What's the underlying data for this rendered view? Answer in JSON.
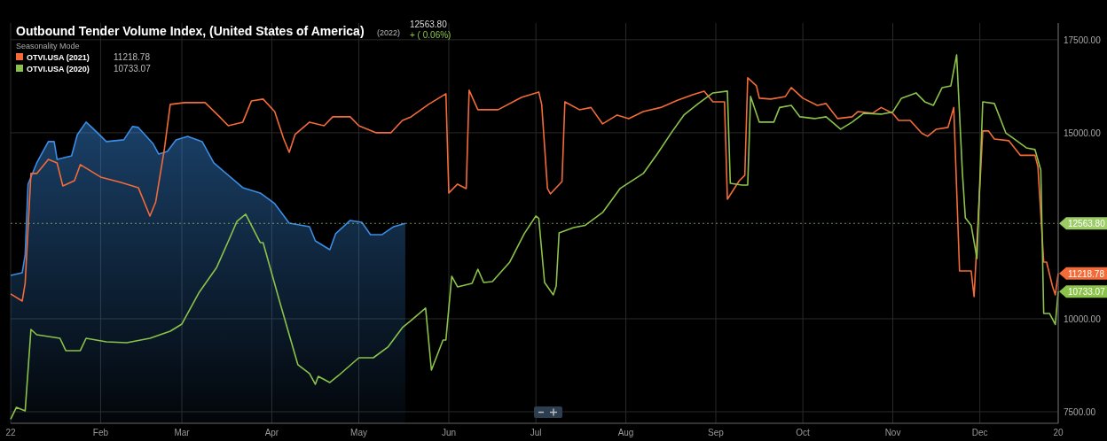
{
  "chart_data": {
    "type": "line",
    "title": "Outbound Tender Volume Index, (United States of America)",
    "legend_title": "Seasonality Mode",
    "legend": "top left",
    "grid": true,
    "xlim": [
      "--01-01",
      "--12-28"
    ],
    "xticks": [
      {
        "value": "--01-01",
        "label": "22"
      },
      {
        "value": "--02-01",
        "label": "Feb"
      },
      {
        "value": "--03-01",
        "label": "Mar"
      },
      {
        "value": "--04-01",
        "label": "Apr"
      },
      {
        "value": "--05-01",
        "label": "May"
      },
      {
        "value": "--06-01",
        "label": "Jun"
      },
      {
        "value": "--07-01",
        "label": "Jul"
      },
      {
        "value": "--08-01",
        "label": "Aug"
      },
      {
        "value": "--09-01",
        "label": "Sep"
      },
      {
        "value": "--10-01",
        "label": "Oct"
      },
      {
        "value": "--11-01",
        "label": "Nov"
      },
      {
        "value": "--12-01",
        "label": "Dec"
      },
      {
        "value": "--12-28",
        "label": "20"
      }
    ],
    "ylim": [
      7190,
      17950
    ],
    "yticks": [
      {
        "value": 7500,
        "label": "7500.00"
      },
      {
        "value": 10000,
        "label": "10000.00"
      },
      {
        "value": 15000,
        "label": "15000.00"
      },
      {
        "value": 17500,
        "label": "17500.00"
      }
    ],
    "ref_lines": [
      {
        "axis": "y",
        "value": 12563.8,
        "label": "12563.80",
        "color": "#9ccc65",
        "line_style": "dotted"
      }
    ],
    "annotations": [
      "(2022)",
      "12563.80",
      "+ ( 0.06%)",
      "11218.78",
      "10733.07",
      {
        "text": "11218.78",
        "x": "--12-28",
        "y": 11218.78
      },
      {
        "text": "10733.07",
        "x": "--12-28",
        "y": 10733.07
      }
    ],
    "series": [
      {
        "type": "area",
        "color": "#3a8ee6",
        "x": [
          "--01-01",
          "--01-05",
          "--01-06",
          "--01-07",
          "--01-10",
          "--01-14",
          "--01-16",
          "--01-17",
          "--01-22",
          "--01-24",
          "--01-27",
          "--01-29",
          "--02-03",
          "--02-09",
          "--02-12",
          "--02-14",
          "--02-19",
          "--02-21",
          "--02-24",
          "--02-27",
          "--03-03",
          "--03-08",
          "--03-12",
          "--03-22",
          "--03-28",
          "--04-02",
          "--04-07",
          "--04-14",
          "--04-16",
          "--04-21",
          "--04-23",
          "--04-28",
          "--05-02",
          "--05-05",
          "--05-09",
          "--05-13",
          "--05-17"
        ],
        "values": [
          11167,
          11238,
          11714,
          13619,
          14190,
          14762,
          14762,
          14286,
          14381,
          14952,
          15286,
          15143,
          14762,
          14810,
          15167,
          15143,
          14714,
          14429,
          14500,
          14810,
          14905,
          14762,
          14190,
          13524,
          13381,
          13095,
          12571,
          12476,
          12095,
          11857,
          12286,
          12643,
          12595,
          12262,
          12262,
          12476,
          12563.8
        ]
      },
      {
        "name": "OTVI.USA (2021)",
        "color": "#f26b38",
        "x": [
          "--01-01",
          "--01-05",
          "--01-06",
          "--01-08",
          "--01-10",
          "--01-14",
          "--01-17",
          "--01-19",
          "--01-23",
          "--01-25",
          "--02-01",
          "--02-08",
          "--02-14",
          "--02-18",
          "--02-20",
          "--02-23",
          "--02-25",
          "--03-02",
          "--03-09",
          "--03-14",
          "--03-17",
          "--03-22",
          "--03-25",
          "--03-29",
          "--04-02",
          "--04-05",
          "--04-07",
          "--04-09",
          "--04-14",
          "--04-19",
          "--04-22",
          "--04-28",
          "--05-01",
          "--05-07",
          "--05-12",
          "--05-16",
          "--05-19",
          "--05-25",
          "--05-31",
          "--06-01",
          "--06-04",
          "--06-07",
          "--06-08",
          "--06-11",
          "--06-18",
          "--06-26",
          "--07-02",
          "--07-03",
          "--07-05",
          "--07-06",
          "--07-10",
          "--07-11",
          "--07-16",
          "--07-20",
          "--07-24",
          "--07-29",
          "--08-02",
          "--08-07",
          "--08-13",
          "--08-19",
          "--08-24",
          "--08-28",
          "--08-31",
          "--09-04",
          "--09-05",
          "--09-09",
          "--09-11",
          "--09-12",
          "--09-15",
          "--09-16",
          "--09-20",
          "--09-25",
          "--09-27",
          "--10-01",
          "--10-06",
          "--10-09",
          "--10-13",
          "--10-18",
          "--10-20",
          "--10-25",
          "--10-28",
          "--11-01",
          "--11-03",
          "--11-07",
          "--11-11",
          "--11-13",
          "--11-16",
          "--11-20",
          "--11-22",
          "--11-24",
          "--11-28",
          "--11-29",
          "--12-02",
          "--12-04",
          "--12-06",
          "--12-11",
          "--12-15",
          "--12-20",
          "--12-21",
          "--12-23",
          "--12-24",
          "--12-26",
          "--12-27",
          "--12-28"
        ],
        "values": [
          10667,
          10476,
          10952,
          13905,
          13905,
          14286,
          14190,
          13571,
          13714,
          14143,
          13810,
          13667,
          13524,
          12762,
          13143,
          14571,
          15762,
          15810,
          15810,
          15429,
          15190,
          15286,
          15857,
          15905,
          15571,
          14857,
          14476,
          14952,
          15286,
          15190,
          15429,
          15429,
          15190,
          15000,
          15000,
          15333,
          15429,
          15762,
          16048,
          13381,
          13619,
          13500,
          16143,
          15619,
          15619,
          15952,
          16095,
          15762,
          13500,
          13357,
          13690,
          15833,
          15619,
          15679,
          15238,
          15476,
          15381,
          15571,
          15679,
          15881,
          16024,
          16119,
          15833,
          15833,
          13214,
          13702,
          13857,
          16476,
          16262,
          15929,
          15905,
          15976,
          16214,
          15929,
          15738,
          15786,
          15381,
          15429,
          15571,
          15524,
          15679,
          15524,
          15333,
          15333,
          14988,
          14905,
          15095,
          15143,
          15679,
          11286,
          11286,
          10595,
          15048,
          15048,
          14833,
          14786,
          14393,
          14393,
          14095,
          11524,
          11524,
          10881,
          10643,
          11218.78
        ]
      },
      {
        "name": "OTVI.USA (2020)",
        "color": "#8bc34a",
        "x": [
          "--01-01",
          "--01-03",
          "--01-06",
          "--01-08",
          "--01-10",
          "--01-18",
          "--01-20",
          "--01-25",
          "--01-27",
          "--02-03",
          "--02-10",
          "--02-18",
          "--02-25",
          "--03-01",
          "--03-07",
          "--03-13",
          "--03-16",
          "--03-20",
          "--03-23",
          "--03-28",
          "--03-29",
          "--04-04",
          "--04-10",
          "--04-14",
          "--04-16",
          "--04-17",
          "--04-21",
          "--04-24",
          "--05-01",
          "--05-06",
          "--05-11",
          "--05-16",
          "--05-19",
          "--05-24",
          "--05-26",
          "--05-30",
          "--05-31",
          "--06-02",
          "--06-04",
          "--06-09",
          "--06-11",
          "--06-13",
          "--06-16",
          "--06-22",
          "--06-27",
          "--07-01",
          "--07-02",
          "--07-04",
          "--07-07",
          "--07-08",
          "--07-09",
          "--07-14",
          "--07-18",
          "--07-24",
          "--07-30",
          "--08-07",
          "--08-12",
          "--08-17",
          "--08-21",
          "--08-26",
          "--08-31",
          "--09-05",
          "--09-06",
          "--09-10",
          "--09-12",
          "--09-13",
          "--09-16",
          "--09-21",
          "--09-23",
          "--09-27",
          "--09-30",
          "--10-05",
          "--10-09",
          "--10-14",
          "--10-18",
          "--10-22",
          "--10-28",
          "--11-01",
          "--11-04",
          "--11-09",
          "--11-12",
          "--11-15",
          "--11-18",
          "--11-21",
          "--11-23",
          "--11-25",
          "--11-26",
          "--11-28",
          "--11-30",
          "--12-02",
          "--12-06",
          "--12-10",
          "--12-12",
          "--12-17",
          "--12-20",
          "--12-22",
          "--12-23",
          "--12-25",
          "--12-27",
          "--12-28"
        ],
        "values": [
          7300,
          7620,
          7524,
          9714,
          9571,
          9476,
          9143,
          9143,
          9476,
          9381,
          9357,
          9476,
          9667,
          9857,
          10714,
          11381,
          11905,
          12619,
          12810,
          12048,
          12048,
          10381,
          8762,
          8524,
          8238,
          8452,
          8286,
          8476,
          8952,
          8952,
          9238,
          9762,
          9952,
          10286,
          8619,
          9429,
          9429,
          11143,
          10857,
          10952,
          11333,
          10976,
          11000,
          11524,
          12286,
          12762,
          12700,
          10976,
          10643,
          10880,
          12310,
          12452,
          12512,
          12857,
          13500,
          13905,
          14452,
          15036,
          15476,
          15786,
          16071,
          16119,
          13643,
          13595,
          13595,
          15976,
          15286,
          15286,
          15679,
          15738,
          15429,
          15381,
          15429,
          15095,
          15286,
          15524,
          15500,
          15560,
          15929,
          16071,
          15833,
          15738,
          16214,
          16262,
          17095,
          13905,
          12714,
          12512,
          11619,
          15833,
          15786,
          14988,
          14881,
          14595,
          14548,
          14000,
          10143,
          10143,
          9845,
          10733.07
        ]
      }
    ]
  }
}
